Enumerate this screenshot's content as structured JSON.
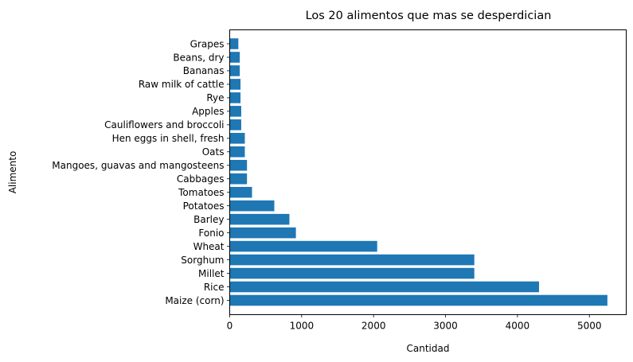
{
  "chart_data": {
    "type": "bar",
    "orientation": "horizontal",
    "title": "Los 20 alimentos que mas se desperdician",
    "xlabel": "Cantidad",
    "ylabel": "Alimento",
    "categories": [
      "Maize (corn)",
      "Rice",
      "Millet",
      "Sorghum",
      "Wheat",
      "Fonio",
      "Barley",
      "Potatoes",
      "Tomatoes",
      "Cabbages",
      "Mangoes, guavas and mangosteens",
      "Oats",
      "Hen eggs in shell, fresh",
      "Cauliflowers and broccoli",
      "Apples",
      "Rye",
      "Raw milk of cattle",
      "Bananas",
      "Beans, dry",
      "Grapes"
    ],
    "values": [
      5250,
      4300,
      3400,
      3400,
      2050,
      920,
      830,
      620,
      310,
      240,
      240,
      210,
      210,
      160,
      160,
      150,
      150,
      140,
      140,
      120
    ],
    "xlim": [
      0,
      5512
    ],
    "xticks": [
      0,
      1000,
      2000,
      3000,
      4000,
      5000
    ],
    "grid": false,
    "bar_color": "#1f77b4"
  }
}
